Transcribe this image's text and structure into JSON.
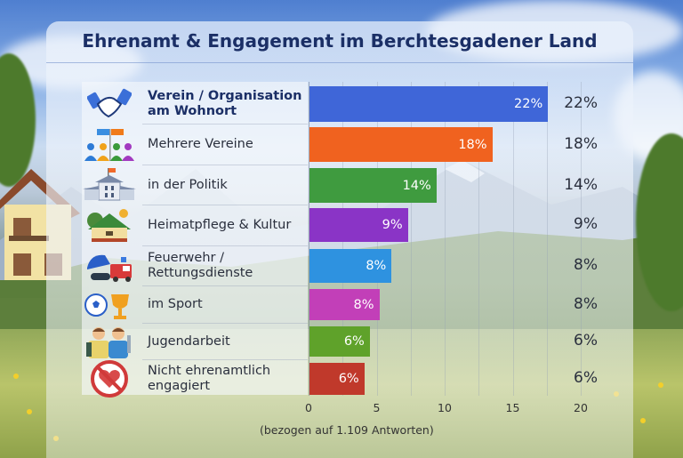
{
  "chart_data": {
    "type": "bar",
    "orientation": "horizontal",
    "title": "Ehrenamt & Engagement im Berchtesgadener Land",
    "note": "(bezogen auf 1.109 Antworten)",
    "categories": [
      "Verein / Organisation am Wohnort",
      "Mehrere Vereine",
      "in der Politik",
      "Heimatpflege & Kultur",
      "Feuerwehr / Rettungsdienste",
      "im Sport",
      "Jugendarbeit",
      "Nicht ehrenamtlich engagiert"
    ],
    "values": [
      22,
      18,
      14,
      9,
      8,
      8,
      6,
      6
    ],
    "value_labels": [
      "22%",
      "18%",
      "14%",
      "9%",
      "8%",
      "8%",
      "6%",
      "6%"
    ],
    "bar_lengths_axis_units": [
      17.6,
      13.5,
      9.4,
      7.3,
      6.1,
      5.2,
      4.5,
      4.1
    ],
    "xlim": [
      0,
      20
    ],
    "xticks": [
      "0",
      "5",
      "10",
      "15",
      "20"
    ],
    "xlabel": "",
    "ylabel": "",
    "grid": true,
    "legend": "none"
  },
  "rows": [
    {
      "line1": "Verein / Organisation",
      "line2": "am Wohnort",
      "icon": "handshake-icon",
      "bold": true,
      "color": "#3f66d8"
    },
    {
      "line1": "Mehrere Vereine",
      "line2": "",
      "icon": "group-flags-icon",
      "bold": false,
      "color": "#f0621f"
    },
    {
      "line1": "in der Politik",
      "line2": "",
      "icon": "town-hall-icon",
      "bold": false,
      "color": "#3f9b3f"
    },
    {
      "line1": "Heimatpflege & Kultur",
      "line2": "",
      "icon": "heritage-house-icon",
      "bold": false,
      "color": "#8a34c6"
    },
    {
      "line1": "Feuerwehr /",
      "line2": "Rettungsdienste",
      "icon": "firefighter-truck-icon",
      "bold": false,
      "color": "#2e92e0"
    },
    {
      "line1": "im Sport",
      "line2": "",
      "icon": "football-trophy-icon",
      "bold": false,
      "color": "#c23fb8"
    },
    {
      "line1": "Jugendarbeit",
      "line2": "",
      "icon": "youth-icon",
      "bold": false,
      "color": "#5fa22a"
    },
    {
      "line1": "Nicht ehrenamtlich",
      "line2": "engagiert",
      "icon": "no-heart-icon",
      "bold": false,
      "color": "#c0392b"
    }
  ]
}
